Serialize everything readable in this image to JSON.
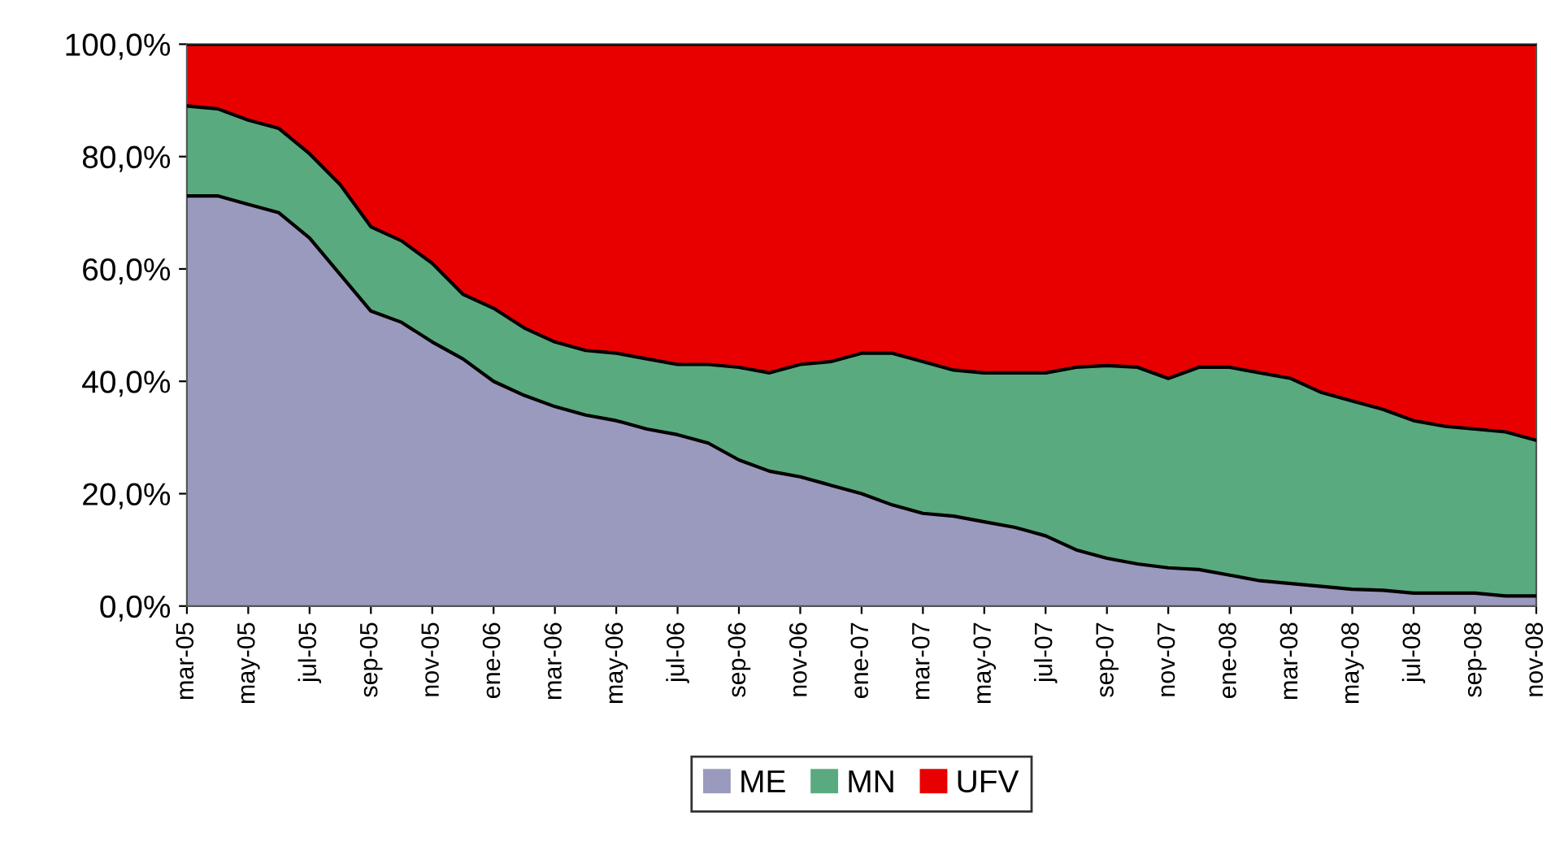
{
  "chart_data": {
    "type": "area",
    "stacked": true,
    "categories": [
      "mar-05",
      null,
      "may-05",
      null,
      "jul-05",
      null,
      "sep-05",
      null,
      "nov-05",
      null,
      "ene-06",
      null,
      "mar-06",
      null,
      "may-06",
      null,
      "jul-06",
      null,
      "sep-06",
      null,
      "nov-06",
      null,
      "ene-07",
      null,
      "mar-07",
      null,
      "may-07",
      null,
      "jul-07",
      null,
      "sep-07",
      null,
      "nov-07",
      null,
      "ene-08",
      null,
      "mar-08",
      null,
      "may-08",
      null,
      "jul-08",
      null,
      "sep-08",
      null,
      "nov-08"
    ],
    "series": [
      {
        "name": "ME",
        "color": "#9a9abf",
        "values": [
          73,
          73,
          71.5,
          70,
          65.5,
          59,
          52.5,
          50.5,
          47,
          44,
          40,
          37.5,
          35.5,
          34,
          33,
          31.5,
          30.5,
          29,
          26,
          24,
          23,
          21.5,
          20,
          18,
          16.5,
          16,
          15,
          14,
          12.5,
          10,
          8.5,
          7.5,
          6.8,
          6.5,
          5.5,
          4.5,
          4,
          3.5,
          3,
          2.8,
          2.3,
          2.3,
          2.3,
          1.8,
          1.8
        ]
      },
      {
        "name": "MN",
        "color": "#5aaa80",
        "values": [
          16,
          15.5,
          15,
          15,
          15,
          16,
          15,
          14.5,
          14,
          11.5,
          13,
          12,
          11.5,
          11.5,
          12,
          12.5,
          12.5,
          14,
          16.5,
          17.5,
          20,
          22,
          25,
          27,
          27,
          26,
          26.5,
          27.5,
          29,
          32.5,
          34.3,
          35,
          33.7,
          36,
          37,
          37,
          36.5,
          34.5,
          33.5,
          32.2,
          30.7,
          29.7,
          29.2,
          29.2,
          27.7
        ]
      },
      {
        "name": "UFV",
        "color": "#e80000",
        "values": [
          11,
          11.5,
          13.5,
          15,
          19.5,
          25,
          32.5,
          35,
          39,
          44.5,
          47,
          50.5,
          53,
          54.5,
          55,
          56,
          57,
          57,
          57.5,
          58.5,
          57,
          56.5,
          55,
          55,
          56.5,
          58,
          58.5,
          58.5,
          58.5,
          57.5,
          57.2,
          57.5,
          59.5,
          57.5,
          57.5,
          58.5,
          59.5,
          62,
          63.5,
          65,
          67,
          68,
          68.5,
          69,
          70.5
        ]
      }
    ],
    "ylim": [
      0,
      100
    ],
    "yticks": [
      {
        "value": 0,
        "label": "0,0%"
      },
      {
        "value": 20,
        "label": "20,0%"
      },
      {
        "value": 40,
        "label": "40,0%"
      },
      {
        "value": 60,
        "label": "60,0%"
      },
      {
        "value": 80,
        "label": "80,0%"
      },
      {
        "value": 100,
        "label": "100,0%"
      }
    ],
    "legend": "bottom"
  }
}
